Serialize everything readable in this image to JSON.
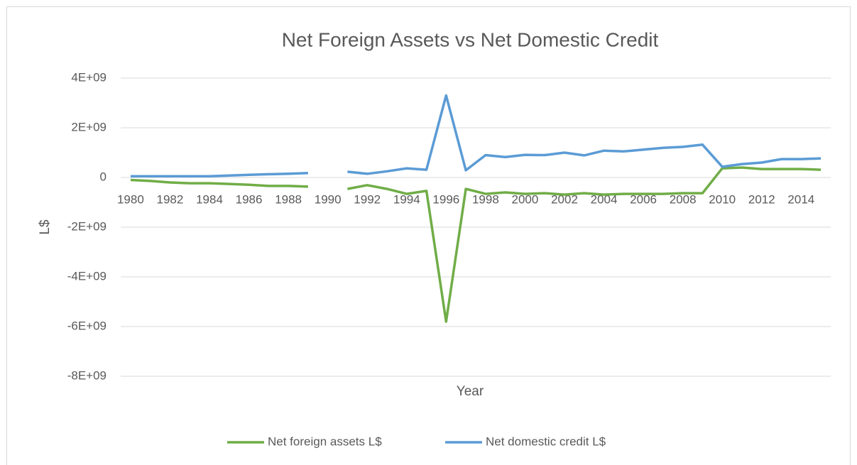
{
  "chart_data": {
    "type": "line",
    "title": "Net Foreign Assets vs Net Domestic Credit",
    "x_label": "Year",
    "y_label": "L$",
    "categories": [
      "1980",
      null,
      "1982",
      null,
      "1984",
      null,
      "1986",
      null,
      "1988",
      null,
      "1990",
      null,
      "1992",
      null,
      "1994",
      null,
      "1996",
      null,
      "1998",
      null,
      "2000",
      null,
      "2002",
      null,
      "2004",
      null,
      "2006",
      null,
      "2008",
      null,
      "2010",
      null,
      "2012",
      null,
      "2014",
      null
    ],
    "series": [
      {
        "name": "Net foreign assets L$",
        "color": "#70ad47",
        "values": [
          -100000000,
          -140000000,
          -200000000,
          -230000000,
          -230000000,
          -260000000,
          -290000000,
          -340000000,
          -340000000,
          -370000000,
          null,
          -460000000,
          -310000000,
          -460000000,
          -660000000,
          -540000000,
          -5800000000,
          -460000000,
          -660000000,
          -600000000,
          -660000000,
          -630000000,
          -690000000,
          -630000000,
          -690000000,
          -660000000,
          -660000000,
          -660000000,
          -630000000,
          -630000000,
          370000000,
          400000000,
          340000000,
          340000000,
          340000000,
          310000000
        ]
      },
      {
        "name": "Net domestic credit L$",
        "color": "#5b9bd5",
        "values": [
          50000000,
          50000000,
          50000000,
          50000000,
          50000000,
          80000000,
          110000000,
          130000000,
          150000000,
          180000000,
          null,
          230000000,
          150000000,
          250000000,
          370000000,
          310000000,
          3300000000,
          290000000,
          900000000,
          820000000,
          910000000,
          900000000,
          1000000000,
          890000000,
          1080000000,
          1050000000,
          1120000000,
          1190000000,
          1230000000,
          1320000000,
          430000000,
          540000000,
          600000000,
          740000000,
          740000000,
          770000000
        ]
      }
    ],
    "ylim": [
      -8000000000,
      4000000000
    ],
    "yticks": [
      {
        "value": -8000000000,
        "label": "-8E+09"
      },
      {
        "value": -6000000000,
        "label": "-6E+09"
      },
      {
        "value": -4000000000,
        "label": "-4E+09"
      },
      {
        "value": -2000000000,
        "label": "-2E+09"
      },
      0,
      {
        "value": 2000000000,
        "label": "2E+09"
      },
      {
        "value": 4000000000,
        "label": "4E+09"
      }
    ],
    "grid": true,
    "legend": "bottom"
  }
}
